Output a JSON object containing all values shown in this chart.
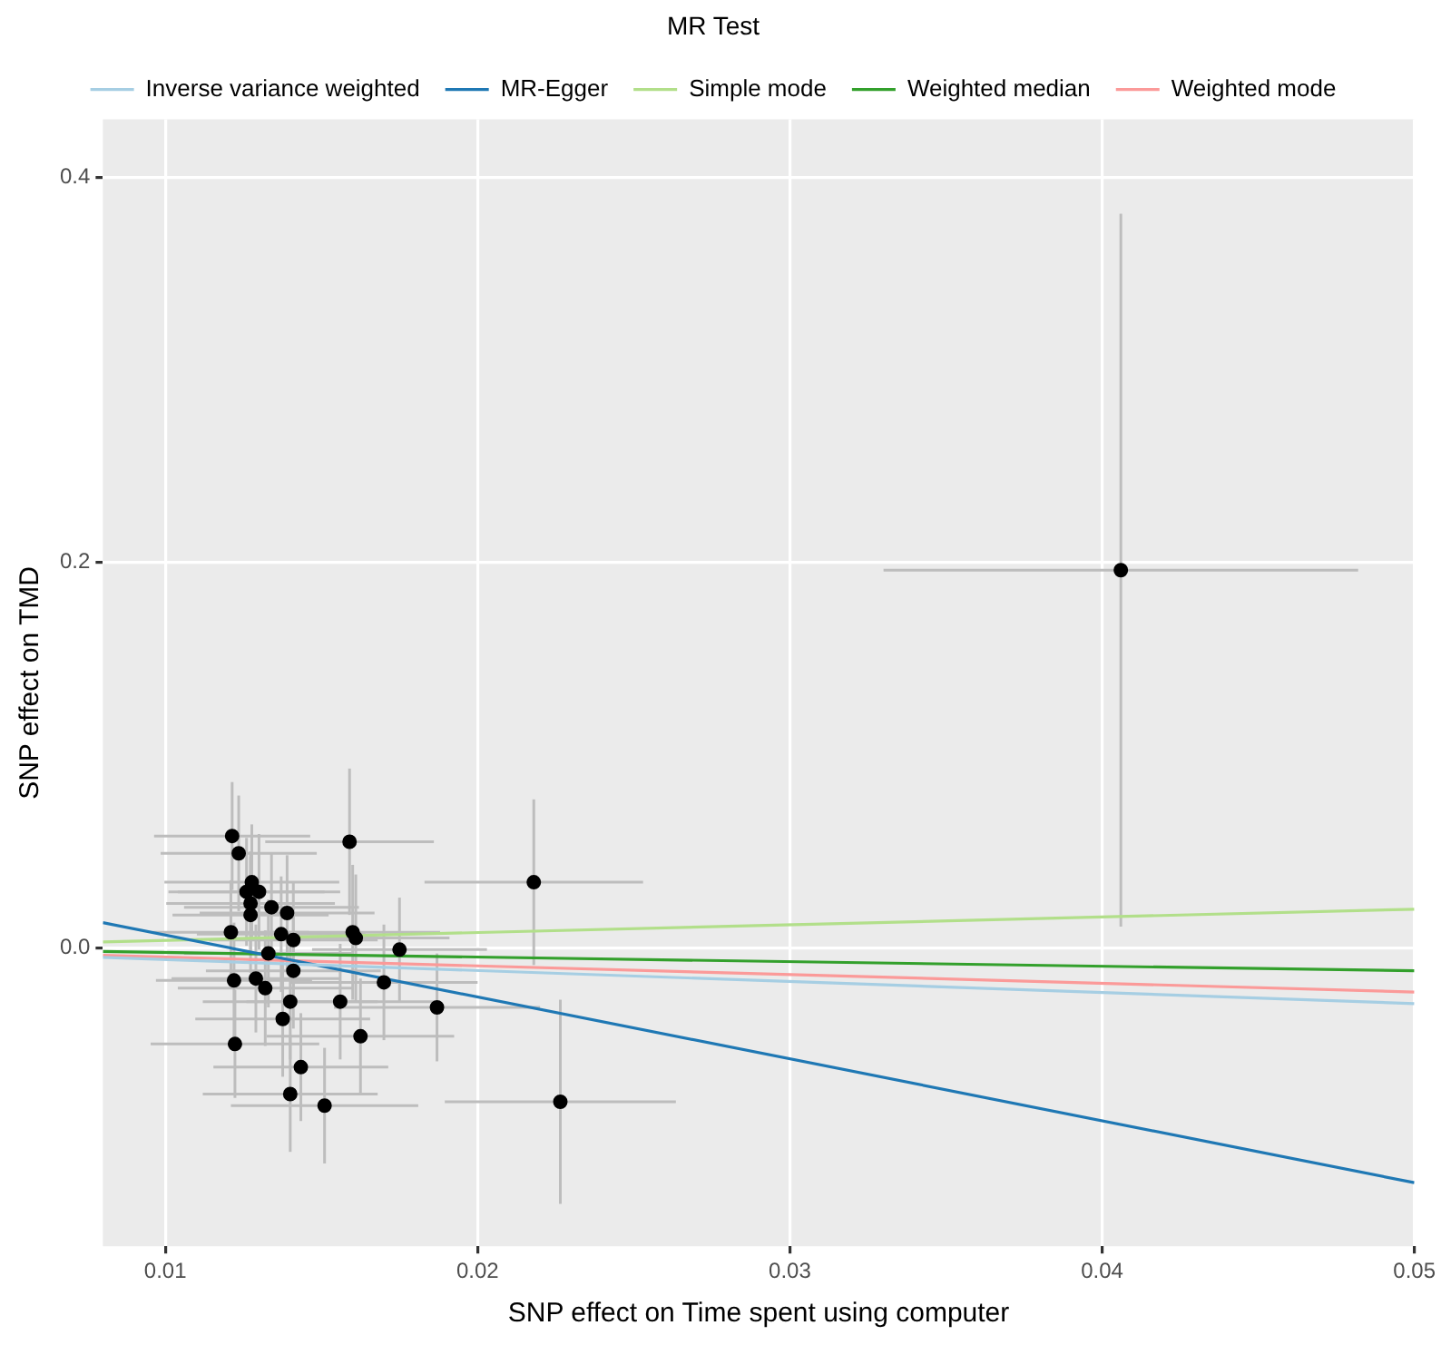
{
  "chart_data": {
    "type": "scatter",
    "xlabel": "SNP effect on Time spent using computer",
    "ylabel": "SNP effect on TMD",
    "legend_title": "MR Test",
    "legend": "top",
    "grid": true,
    "xlim": [
      0.008,
      0.05
    ],
    "xticks": [
      0.01,
      0.02,
      0.03,
      0.04,
      0.05
    ],
    "ylim": [
      -0.155,
      0.43
    ],
    "yticks": [
      {
        "value": 0,
        "label": "0.0"
      },
      {
        "value": 0.2,
        "label": "0.2"
      },
      {
        "value": 0.4,
        "label": "0.4"
      }
    ],
    "series": [
      {
        "marker": "circle",
        "color": "#000000",
        "x": [
          0.01214,
          0.01235,
          0.0159,
          0.01277,
          0.0126,
          0.013,
          0.01273,
          0.01273,
          0.0134,
          0.0139,
          0.0121,
          0.01371,
          0.0141,
          0.016,
          0.0161,
          0.0175,
          0.0133,
          0.0141,
          0.0122,
          0.0129,
          0.0132,
          0.017,
          0.014,
          0.0156,
          0.0187,
          0.01376,
          0.01625,
          0.01223,
          0.01434,
          0.014,
          0.0151,
          0.0218,
          0.02265,
          0.0406
        ],
        "values": [
          0.058,
          0.049,
          0.055,
          0.034,
          0.029,
          0.029,
          0.023,
          0.017,
          0.021,
          0.018,
          0.008,
          0.007,
          0.004,
          0.008,
          0.005,
          -0.001,
          -0.003,
          -0.012,
          -0.017,
          -0.016,
          -0.021,
          -0.018,
          -0.028,
          -0.028,
          -0.031,
          -0.037,
          -0.046,
          -0.05,
          -0.062,
          -0.076,
          -0.082,
          0.034,
          -0.08,
          0.196
        ],
        "errors": [
          0.028,
          0.03,
          0.038,
          0.03,
          0.028,
          0.03,
          0.027,
          0.03,
          0.028,
          0.03,
          0.027,
          0.03,
          0.03,
          0.035,
          0.033,
          0.027,
          0.028,
          0.03,
          0.03,
          0.028,
          0.03,
          0.03,
          0.03,
          0.03,
          0.028,
          0.03,
          0.03,
          0.028,
          0.028,
          0.03,
          0.03,
          0.043,
          0.053,
          0.185
        ],
        "xerrors": [
          0.0025,
          0.0025,
          0.0027,
          0.0028,
          0.0025,
          0.0026,
          0.0027,
          0.0025,
          0.0028,
          0.0028,
          0.0025,
          0.0027,
          0.0027,
          0.0028,
          0.003,
          0.0028,
          0.0027,
          0.0028,
          0.0025,
          0.0027,
          0.0028,
          0.003,
          0.0028,
          0.003,
          0.0033,
          0.0028,
          0.003,
          0.0027,
          0.0028,
          0.0028,
          0.003,
          0.0035,
          0.0037,
          0.0076
        ]
      },
      {
        "type": "line",
        "name": "Inverse variance weighted",
        "color": "#a6cee3",
        "x": [
          0.008,
          0.05
        ],
        "values": [
          -0.005,
          -0.029
        ]
      },
      {
        "type": "line",
        "name": "MR-Egger",
        "color": "#1f78b4",
        "x": [
          0.008,
          0.05
        ],
        "values": [
          0.013,
          -0.122
        ]
      },
      {
        "type": "line",
        "name": "Simple mode",
        "color": "#b2df8a",
        "x": [
          0.008,
          0.05
        ],
        "values": [
          0.003,
          0.02
        ]
      },
      {
        "type": "line",
        "name": "Weighted median",
        "color": "#33a02c",
        "x": [
          0.008,
          0.05
        ],
        "values": [
          -0.002,
          -0.012
        ]
      },
      {
        "type": "line",
        "name": "Weighted mode",
        "color": "#fb9a99",
        "x": [
          0.008,
          0.05
        ],
        "values": [
          -0.004,
          -0.023
        ]
      }
    ]
  }
}
